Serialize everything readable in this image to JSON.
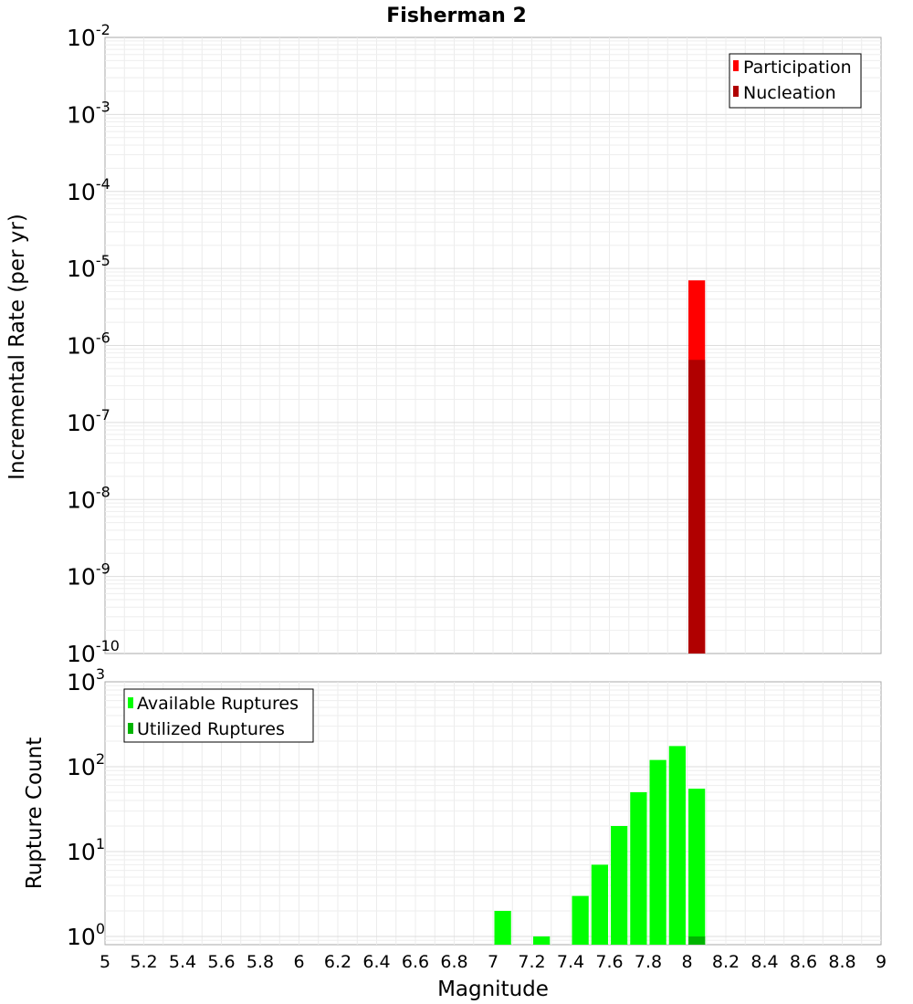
{
  "chart_data": [
    {
      "type": "bar",
      "title": "Fisherman 2",
      "xlabel": "",
      "ylabel": "Incremental Rate (per yr)",
      "xlim": [
        5,
        9
      ],
      "ylim": [
        1e-10,
        0.01
      ],
      "yscale": "log",
      "grid": true,
      "legend_position": "top-right",
      "y_ticks": [
        {
          "base": "10",
          "exp": "-2",
          "value": 0.01
        },
        {
          "base": "10",
          "exp": "-3",
          "value": 0.001
        },
        {
          "base": "10",
          "exp": "-4",
          "value": 0.0001
        },
        {
          "base": "10",
          "exp": "-5",
          "value": 1e-05
        },
        {
          "base": "10",
          "exp": "-6",
          "value": 1e-06
        },
        {
          "base": "10",
          "exp": "-7",
          "value": 1e-07
        },
        {
          "base": "10",
          "exp": "-8",
          "value": 1e-08
        },
        {
          "base": "10",
          "exp": "-9",
          "value": 1e-09
        },
        {
          "base": "10",
          "exp": "-10",
          "value": 1e-10
        }
      ],
      "bar_width": 0.1,
      "series": [
        {
          "name": "Participation",
          "color": "#ff0000",
          "points": [
            {
              "x": 8.05,
              "y": 7e-06
            }
          ]
        },
        {
          "name": "Nucleation",
          "color": "#b00000",
          "points": [
            {
              "x": 8.05,
              "y": 6.5e-07
            }
          ]
        }
      ]
    },
    {
      "type": "bar",
      "title": "",
      "xlabel": "Magnitude",
      "ylabel": "Rupture Count",
      "xlim": [
        5,
        9
      ],
      "ylim": [
        0.8,
        1000
      ],
      "yscale": "log",
      "grid": true,
      "legend_position": "top-left",
      "x_ticks": [
        "5",
        "5.2",
        "5.4",
        "5.6",
        "5.8",
        "6",
        "6.2",
        "6.4",
        "6.6",
        "6.8",
        "7",
        "7.2",
        "7.4",
        "7.6",
        "7.8",
        "8",
        "8.2",
        "8.4",
        "8.6",
        "8.8",
        "9"
      ],
      "y_ticks": [
        {
          "base": "10",
          "exp": "3",
          "value": 1000
        },
        {
          "base": "10",
          "exp": "2",
          "value": 100
        },
        {
          "base": "10",
          "exp": "1",
          "value": 10
        },
        {
          "base": "10",
          "exp": "0",
          "value": 1
        }
      ],
      "bar_width": 0.1,
      "series": [
        {
          "name": "Available Ruptures",
          "color": "#00ff00",
          "points": [
            {
              "x": 7.05,
              "y": 2
            },
            {
              "x": 7.25,
              "y": 1
            },
            {
              "x": 7.45,
              "y": 3
            },
            {
              "x": 7.55,
              "y": 7
            },
            {
              "x": 7.65,
              "y": 20
            },
            {
              "x": 7.75,
              "y": 50
            },
            {
              "x": 7.85,
              "y": 120
            },
            {
              "x": 7.95,
              "y": 175
            },
            {
              "x": 8.05,
              "y": 55
            }
          ]
        },
        {
          "name": "Utilized Ruptures",
          "color": "#00b400",
          "points": [
            {
              "x": 8.05,
              "y": 1
            }
          ]
        }
      ]
    }
  ]
}
